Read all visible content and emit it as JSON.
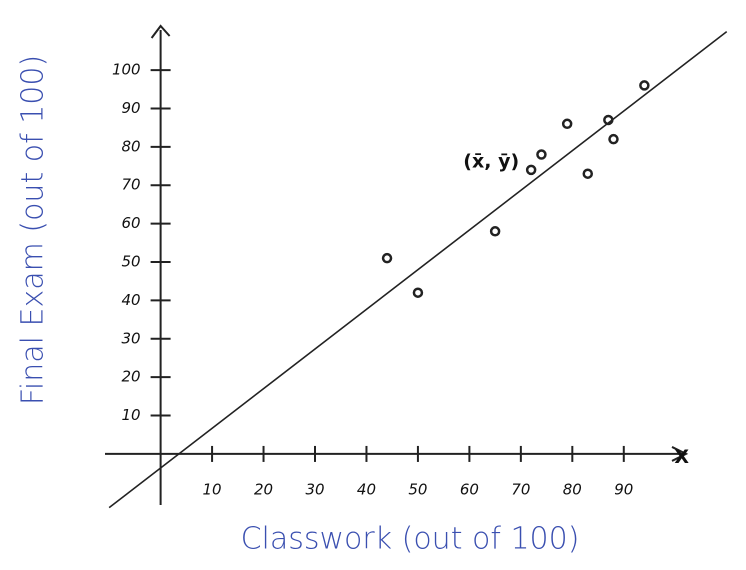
{
  "chart_data": {
    "type": "scatter",
    "x_label": "Classwork (out of 100)",
    "y_label": "Final Exam (out of 100)",
    "x": [
      44,
      50,
      65,
      72,
      74,
      79,
      83,
      87,
      88,
      94
    ],
    "y": [
      51,
      42,
      58,
      74,
      78,
      86,
      73,
      87,
      82,
      96
    ],
    "color": "#222222",
    "trend_line": {
      "x": [
        -10,
        110
      ],
      "y": [
        -14,
        110
      ],
      "color": "#222222"
    },
    "annotations": [
      {
        "text": "(x̄, ȳ)",
        "x": 72,
        "y": 74
      },
      {
        "text": "X",
        "x": 105,
        "y": -3
      }
    ],
    "xlim": [
      -11,
      112
    ],
    "ylim": [
      -12,
      112
    ],
    "xticks": [
      10,
      20,
      30,
      40,
      50,
      60,
      70,
      80,
      90
    ],
    "yticks": [
      10,
      20,
      30,
      40,
      50,
      60,
      70,
      80,
      90,
      100
    ]
  }
}
